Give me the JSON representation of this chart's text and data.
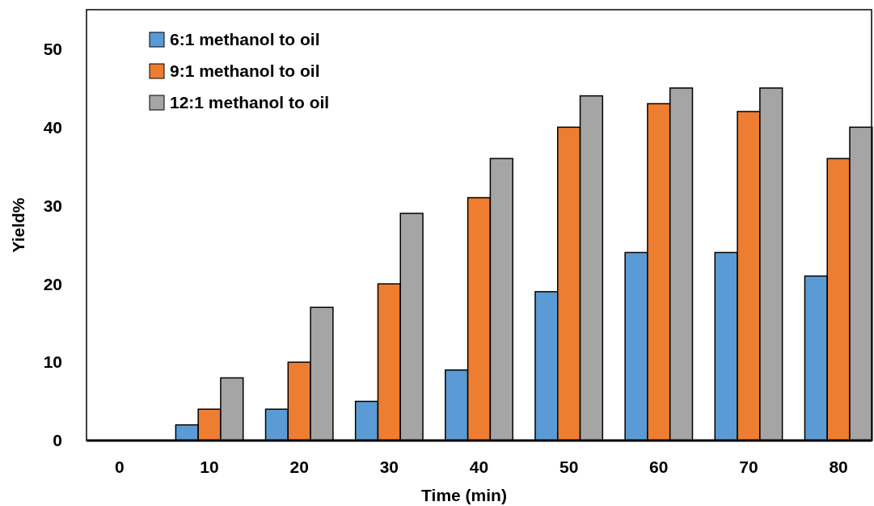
{
  "chart_data": {
    "type": "bar",
    "xlabel": "Time (min)",
    "ylabel": "Yield%",
    "categories": [
      "0",
      "10",
      "20",
      "30",
      "40",
      "50",
      "60",
      "70",
      "80"
    ],
    "series": [
      {
        "name": "6:1 methanol to oil",
        "color": "#5b9bd5",
        "values": [
          0,
          2,
          4,
          5,
          9,
          19,
          24,
          24,
          21
        ]
      },
      {
        "name": "9:1 methanol to oil",
        "color": "#ed7d31",
        "values": [
          0,
          4,
          10,
          20,
          31,
          40,
          43,
          42,
          36
        ]
      },
      {
        "name": "12:1 methanol to oil",
        "color": "#a5a5a5",
        "values": [
          0,
          8,
          17,
          29,
          36,
          44,
          45,
          45,
          40
        ]
      }
    ],
    "ylim": [
      0,
      55
    ],
    "yticks": [
      0,
      10,
      20,
      30,
      40,
      50
    ],
    "grid": false,
    "legend": "top left"
  }
}
